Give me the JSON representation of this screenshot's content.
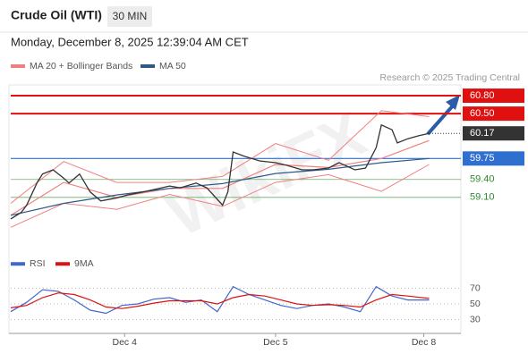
{
  "header": {
    "title": "Crude Oil (WTI)",
    "timeframe": "30 MIN",
    "datetime": "Monday, December 8, 2025 12:39:04 AM CET",
    "source": "Research © 2025 Trading Central",
    "watermark": "WikiFX"
  },
  "chart_data": [
    {
      "type": "line",
      "xlim": [
        0,
        85
      ],
      "ylim": [
        58.44,
        60.98
      ],
      "price": {
        "color": "#333333",
        "x": [
          0,
          2,
          3,
          5,
          6,
          8,
          10,
          11,
          13,
          15,
          17,
          20,
          22,
          25,
          27,
          30,
          32,
          35,
          37,
          40,
          41,
          42,
          44,
          47,
          50,
          52,
          55,
          57,
          60,
          62,
          65,
          67,
          69,
          70,
          72,
          73,
          75,
          77,
          79
        ],
        "values": [
          58.74,
          58.85,
          58.97,
          59.35,
          59.49,
          59.56,
          59.42,
          59.34,
          59.49,
          59.19,
          59.04,
          59.09,
          59.14,
          59.19,
          59.23,
          59.29,
          59.26,
          59.34,
          59.26,
          58.97,
          59.19,
          59.86,
          59.79,
          59.71,
          59.68,
          59.64,
          59.56,
          59.56,
          59.59,
          59.68,
          59.56,
          59.59,
          59.93,
          60.31,
          60.23,
          60.01,
          60.08,
          60.13,
          60.17
        ]
      },
      "series": [
        {
          "name": "MA 20 + Bollinger Bands",
          "color": "#f08080",
          "x": [
            0,
            10,
            20,
            30,
            40,
            50,
            60,
            70,
            79
          ],
          "values": [
            58.8,
            59.35,
            59.1,
            59.25,
            59.25,
            59.65,
            59.6,
            59.75,
            60.05
          ],
          "upper": [
            59.0,
            59.7,
            59.35,
            59.35,
            59.45,
            60.0,
            59.72,
            60.55,
            60.45
          ],
          "lower": [
            58.6,
            59.0,
            58.9,
            59.15,
            58.95,
            59.35,
            59.48,
            59.2,
            59.65
          ]
        },
        {
          "name": "MA 50",
          "color": "#2e5a8a",
          "x": [
            0,
            10,
            20,
            30,
            40,
            50,
            60,
            70,
            79
          ],
          "values": [
            58.8,
            59.0,
            59.14,
            59.25,
            59.33,
            59.5,
            59.57,
            59.68,
            59.75
          ]
        }
      ],
      "levels": [
        {
          "value": 60.8,
          "label": "60.80",
          "color": "#e01010",
          "boxed": true
        },
        {
          "value": 60.5,
          "label": "60.50",
          "color": "#e01010",
          "boxed": true
        },
        {
          "value": 60.17,
          "label": "60.17",
          "color": "#333333",
          "boxed": true
        },
        {
          "value": 59.75,
          "label": "59.75",
          "color": "#2f6fd0",
          "boxed": true
        },
        {
          "value": 59.4,
          "label": "59.40",
          "color": "#2e8b2e",
          "boxed": false
        },
        {
          "value": 59.1,
          "label": "59.10",
          "color": "#2e8b2e",
          "boxed": false
        }
      ]
    },
    {
      "type": "line",
      "xlim": [
        0,
        85
      ],
      "ylim": [
        15,
        84
      ],
      "yticks": [
        30,
        50,
        70
      ],
      "xticks": [
        {
          "value": 21.5,
          "label": "Dec 4"
        },
        {
          "value": 50,
          "label": "Dec 5"
        },
        {
          "value": 78,
          "label": "Dec 8"
        }
      ],
      "series": [
        {
          "name": "RSI",
          "color": "#4466cc",
          "x": [
            0,
            3,
            6,
            9,
            12,
            15,
            18,
            21,
            24,
            27,
            30,
            33,
            36,
            39,
            42,
            45,
            48,
            51,
            54,
            57,
            60,
            63,
            66,
            69,
            72,
            75,
            79
          ],
          "values": [
            40,
            52,
            68,
            66,
            55,
            42,
            38,
            48,
            50,
            56,
            58,
            52,
            55,
            40,
            72,
            62,
            55,
            48,
            44,
            48,
            50,
            46,
            40,
            72,
            60,
            55,
            55
          ]
        },
        {
          "name": "9MA",
          "color": "#dd1111",
          "x": [
            0,
            3,
            6,
            9,
            12,
            15,
            18,
            21,
            24,
            27,
            30,
            33,
            36,
            39,
            42,
            45,
            48,
            51,
            54,
            57,
            60,
            63,
            66,
            69,
            72,
            75,
            79
          ],
          "values": [
            45,
            48,
            58,
            64,
            62,
            55,
            46,
            44,
            47,
            51,
            54,
            54,
            54,
            50,
            58,
            62,
            60,
            55,
            50,
            48,
            49,
            48,
            46,
            55,
            62,
            60,
            57
          ]
        }
      ]
    }
  ]
}
